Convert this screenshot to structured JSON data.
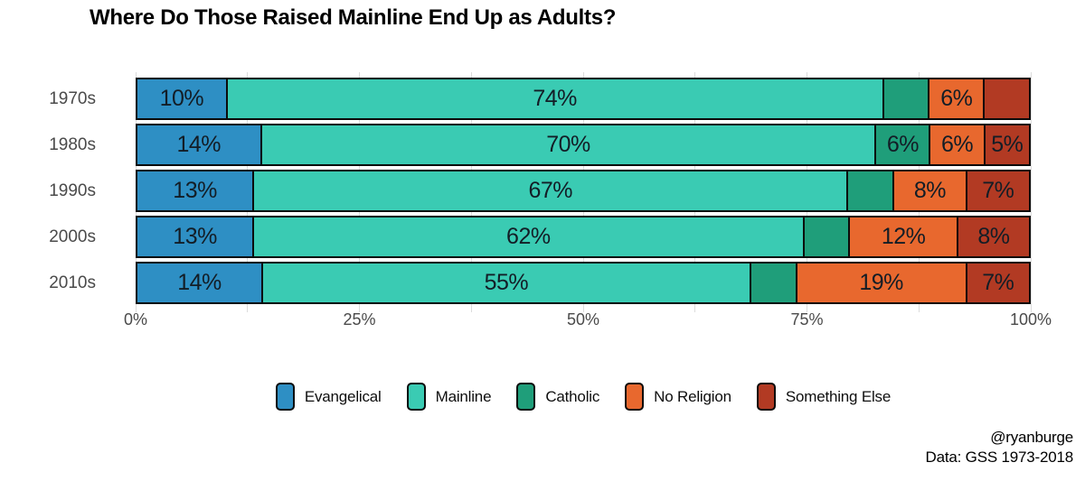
{
  "title": "Where Do Those Raised Mainline End Up as Adults?",
  "credits": {
    "line1": "@ryanburge",
    "line2": "Data: GSS 1973-2018"
  },
  "chart_data": {
    "type": "bar",
    "orientation": "horizontal",
    "stacked": true,
    "title": "Where Do Those Raised Mainline End Up as Adults?",
    "categories": [
      "1970s",
      "1980s",
      "1990s",
      "2000s",
      "2010s"
    ],
    "series": [
      {
        "name": "Evangelical",
        "color": "#2e8fc4",
        "values": [
          10,
          14,
          13,
          13,
          14
        ],
        "bar_labels": [
          "10%",
          "14%",
          "13%",
          "13%",
          "14%"
        ]
      },
      {
        "name": "Mainline",
        "color": "#3acbb3",
        "values": [
          74,
          70,
          67,
          62,
          55
        ],
        "bar_labels": [
          "74%",
          "70%",
          "67%",
          "62%",
          "55%"
        ]
      },
      {
        "name": "Catholic",
        "color": "#1f9e7a",
        "values": [
          5,
          6,
          5,
          5,
          5
        ],
        "bar_labels": [
          "",
          "6%",
          "",
          "",
          ""
        ]
      },
      {
        "name": "No Religion",
        "color": "#e8682e",
        "values": [
          6,
          6,
          8,
          12,
          19
        ],
        "bar_labels": [
          "6%",
          "6%",
          "8%",
          "12%",
          "19%"
        ]
      },
      {
        "name": "Something Else",
        "color": "#b23a23",
        "values": [
          5,
          5,
          7,
          8,
          7
        ],
        "bar_labels": [
          "",
          "5%",
          "7%",
          "8%",
          "7%"
        ]
      }
    ],
    "x_ticks": [
      {
        "label": "0%",
        "value": 0
      },
      {
        "label": "25%",
        "value": 25
      },
      {
        "label": "50%",
        "value": 50
      },
      {
        "label": "75%",
        "value": 75
      },
      {
        "label": "100%",
        "value": 100
      }
    ],
    "xlim": [
      0,
      100
    ],
    "grid": {
      "on": true,
      "minor_step_pct": 12.5,
      "color": "#dcdcdc"
    },
    "legend_position": "bottom"
  }
}
